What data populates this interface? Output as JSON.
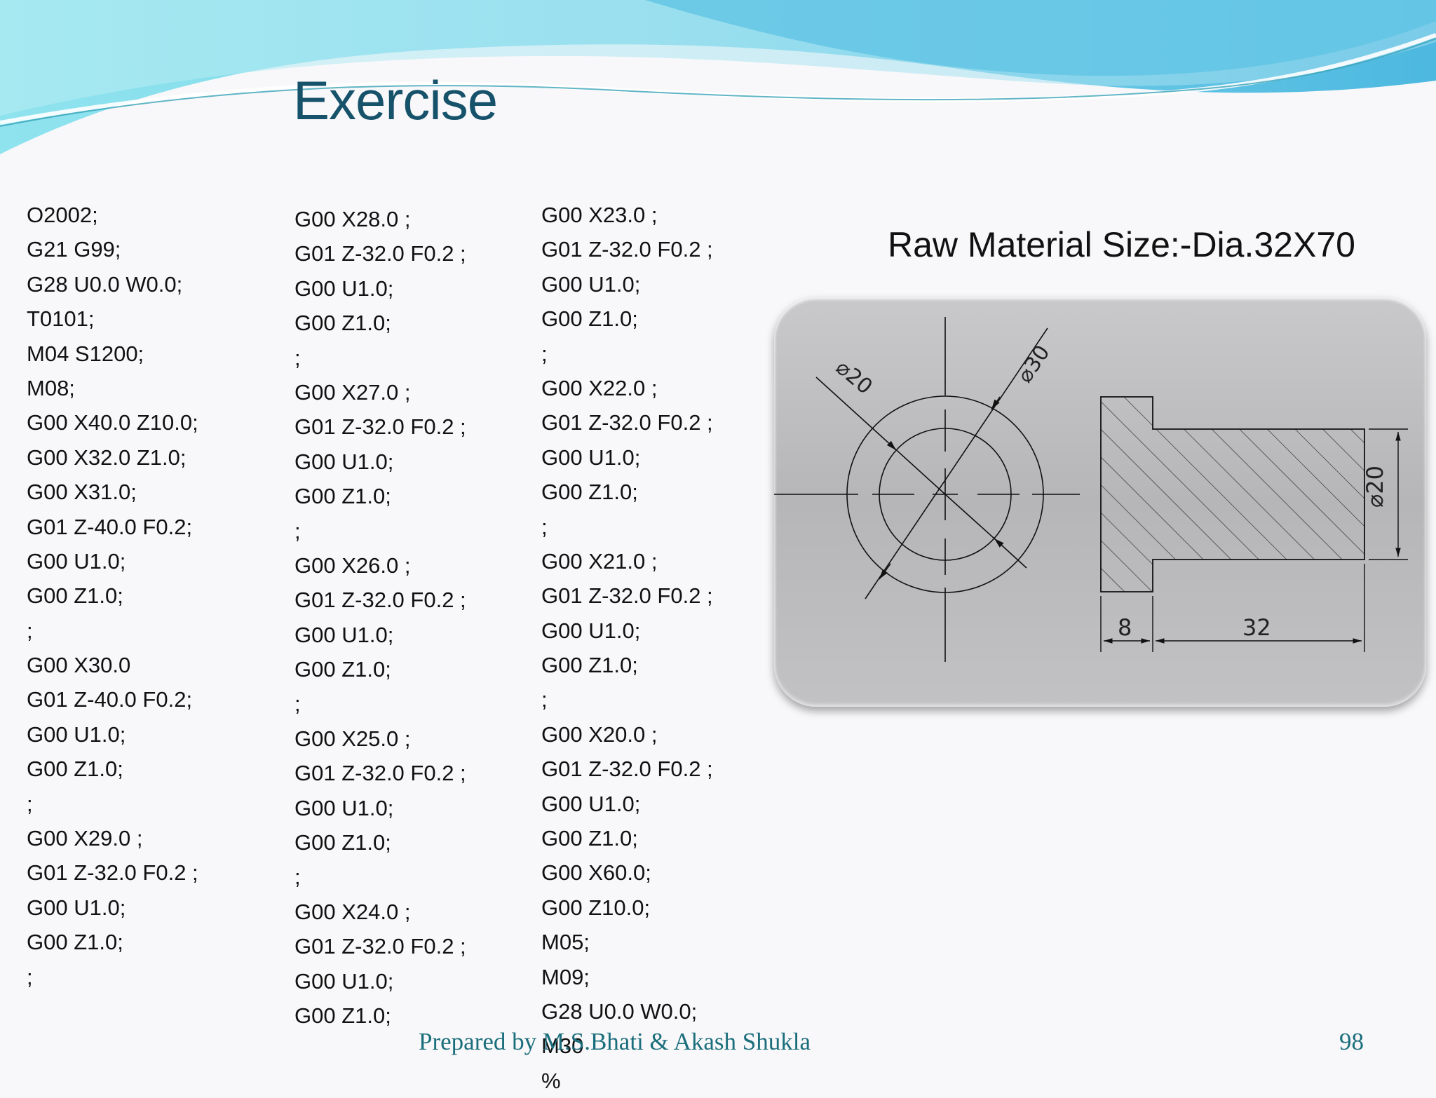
{
  "slide": {
    "title": "Exercise",
    "raw_material": "Raw Material Size:-Dia.32X70",
    "footer": "Prepared by M.S.Bhati  &   Akash Shukla",
    "page_number": "98"
  },
  "program": {
    "column1": [
      "O2002;",
      "G21 G99;",
      "G28 U0.0 W0.0;",
      "T0101;",
      "M04 S1200;",
      "M08;",
      "G00 X40.0 Z10.0;",
      "G00 X32.0 Z1.0;",
      "G00 X31.0;",
      "G01 Z-40.0 F0.2;",
      "G00 U1.0;",
      "G00 Z1.0;",
      ";",
      "G00 X30.0",
      "G01 Z-40.0 F0.2;",
      "G00 U1.0;",
      "G00 Z1.0;",
      ";",
      "G00 X29.0 ;",
      "G01 Z-32.0 F0.2 ;",
      "G00 U1.0;",
      "G00 Z1.0;",
      ";"
    ],
    "column2": [
      "G00 X28.0 ;",
      "G01 Z-32.0 F0.2 ;",
      "G00 U1.0;",
      "G00 Z1.0;",
      ";",
      "G00 X27.0 ;",
      "G01 Z-32.0 F0.2 ;",
      "G00 U1.0;",
      "G00 Z1.0;",
      ";",
      "G00 X26.0 ;",
      "G01 Z-32.0 F0.2 ;",
      "G00 U1.0;",
      "G00 Z1.0;",
      ";",
      "G00 X25.0 ;",
      "G01 Z-32.0 F0.2 ;",
      "G00 U1.0;",
      "G00 Z1.0;",
      ";",
      "G00 X24.0 ;",
      "G01 Z-32.0 F0.2 ;",
      "G00 U1.0;",
      "G00 Z1.0;"
    ],
    "column3": [
      "G00 X23.0 ;",
      "G01 Z-32.0 F0.2 ;",
      "G00 U1.0;",
      "G00 Z1.0;",
      ";",
      "G00 X22.0 ;",
      "G01 Z-32.0 F0.2 ;",
      "G00 U1.0;",
      "G00 Z1.0;",
      ";",
      "G00 X21.0 ;",
      "G01 Z-32.0 F0.2 ;",
      "G00 U1.0;",
      "G00 Z1.0;",
      ";",
      "G00 X20.0 ;",
      "G01 Z-32.0 F0.2 ;",
      "G00 U1.0;",
      "G00 Z1.0;",
      "G00 X60.0;",
      "G00 Z10.0;",
      "M05;",
      "M09;",
      "G28 U0.0 W0.0;",
      "M30",
      "%"
    ]
  },
  "drawing": {
    "dia_outer": "⌀30",
    "dia_inner": "⌀20",
    "dia_shaft": "⌀20",
    "len_head": "8",
    "len_shaft": "32"
  }
}
